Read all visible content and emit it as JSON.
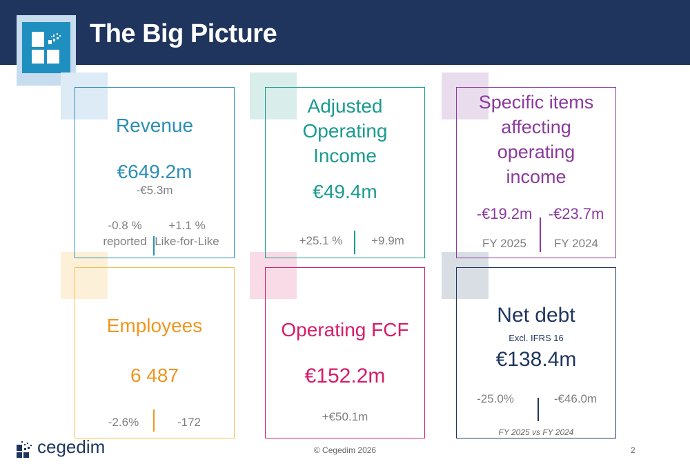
{
  "title": "The Big Picture",
  "cards": {
    "revenue": {
      "label": "Revenue",
      "value": "€649.2m",
      "delta": "-€5.3m",
      "left_pct": "-0.8 %",
      "left_caption": "reported",
      "right_pct": "+1.1 %",
      "right_caption": "Like-for-Like",
      "color": "#2a8fb5"
    },
    "aoi": {
      "label_lines": [
        "Adjusted",
        "Operating",
        "Income"
      ],
      "value": "€49.4m",
      "left": "+25.1 %",
      "right": "+9.9m",
      "color": "#1a9b8f"
    },
    "specific": {
      "label_lines": [
        "Specific items",
        "affecting",
        "operating",
        "income"
      ],
      "left_value": "-€19.2m",
      "left_caption": "FY 2025",
      "right_value": "-€23.7m",
      "right_caption": "FY 2024",
      "color": "#8a3a9c"
    },
    "employees": {
      "label": "Employees",
      "value": "6 487",
      "left": "-2.6%",
      "right": "-172",
      "color": "#f0961e"
    },
    "fcf": {
      "label": "Operating FCF",
      "value": "€152.2m",
      "delta": "+€50.1m",
      "color": "#d81b6a"
    },
    "debt": {
      "label": "Net debt",
      "sublabel": "Excl. IFRS 16",
      "value": "€138.4m",
      "left": "-25.0%",
      "right": "-€46.0m",
      "caption": "FY 2025 vs FY 2024",
      "color": "#1f355e"
    }
  },
  "footer": {
    "copyright": "© Cegedim 2026",
    "page": "2",
    "brand": "cegedim"
  }
}
